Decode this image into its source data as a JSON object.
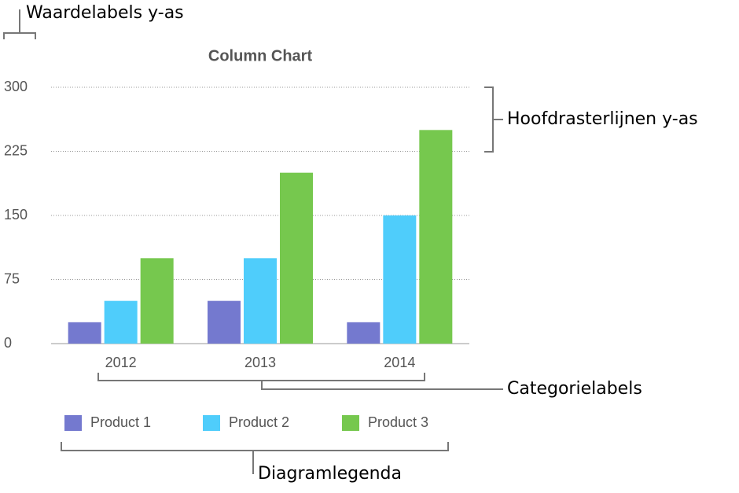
{
  "chart_data": {
    "type": "bar",
    "title": "Column Chart",
    "categories": [
      "2012",
      "2013",
      "2014"
    ],
    "series": [
      {
        "name": "Product 1",
        "color": "#7479cf",
        "values": [
          25,
          50,
          25
        ]
      },
      {
        "name": "Product 2",
        "color": "#4fcdfb",
        "values": [
          50,
          100,
          150
        ]
      },
      {
        "name": "Product 3",
        "color": "#76c84e",
        "values": [
          100,
          200,
          250
        ]
      }
    ],
    "ylim": [
      0,
      300
    ],
    "yticks": [
      0,
      75,
      150,
      225,
      300
    ],
    "grid": true,
    "annotations": [
      "Waardelabels y-as",
      "Hoofdrasterlijnen y-as",
      "Categorielabels",
      "Diagramlegenda"
    ]
  }
}
